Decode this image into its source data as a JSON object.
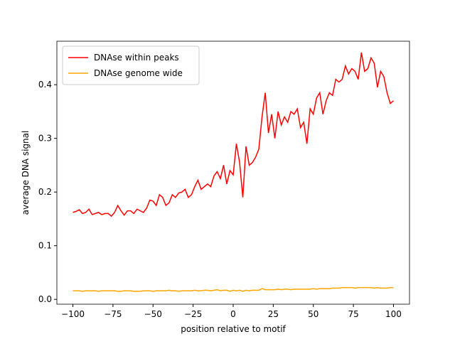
{
  "chart_data": {
    "type": "line",
    "xlabel": "position relative to motif",
    "ylabel": "average DNA signal",
    "x": [
      -100,
      -98,
      -96,
      -94,
      -92,
      -90,
      -88,
      -86,
      -84,
      -82,
      -80,
      -78,
      -76,
      -74,
      -72,
      -70,
      -68,
      -66,
      -64,
      -62,
      -60,
      -58,
      -56,
      -54,
      -52,
      -50,
      -48,
      -46,
      -44,
      -42,
      -40,
      -38,
      -36,
      -34,
      -32,
      -30,
      -28,
      -26,
      -24,
      -22,
      -20,
      -18,
      -16,
      -14,
      -12,
      -10,
      -8,
      -6,
      -4,
      -2,
      0,
      2,
      4,
      6,
      8,
      10,
      12,
      14,
      16,
      18,
      20,
      22,
      24,
      26,
      28,
      30,
      32,
      34,
      36,
      38,
      40,
      42,
      44,
      46,
      48,
      50,
      52,
      54,
      56,
      58,
      60,
      62,
      64,
      66,
      68,
      70,
      72,
      74,
      76,
      78,
      80,
      82,
      84,
      86,
      88,
      90,
      92,
      94,
      96,
      98,
      100
    ],
    "series": [
      {
        "name": "DNAse within peaks",
        "color": "#ff0000",
        "values": [
          0.162,
          0.164,
          0.167,
          0.16,
          0.162,
          0.168,
          0.158,
          0.16,
          0.162,
          0.158,
          0.16,
          0.16,
          0.155,
          0.162,
          0.175,
          0.165,
          0.157,
          0.165,
          0.165,
          0.16,
          0.168,
          0.165,
          0.162,
          0.17,
          0.185,
          0.183,
          0.175,
          0.195,
          0.19,
          0.175,
          0.18,
          0.195,
          0.19,
          0.198,
          0.2,
          0.205,
          0.19,
          0.195,
          0.21,
          0.222,
          0.205,
          0.21,
          0.215,
          0.21,
          0.23,
          0.238,
          0.225,
          0.25,
          0.215,
          0.24,
          0.232,
          0.29,
          0.255,
          0.19,
          0.285,
          0.25,
          0.255,
          0.265,
          0.28,
          0.34,
          0.385,
          0.31,
          0.345,
          0.3,
          0.35,
          0.325,
          0.34,
          0.33,
          0.35,
          0.345,
          0.355,
          0.32,
          0.33,
          0.29,
          0.355,
          0.345,
          0.375,
          0.385,
          0.345,
          0.37,
          0.385,
          0.38,
          0.41,
          0.405,
          0.41,
          0.435,
          0.42,
          0.43,
          0.425,
          0.41,
          0.46,
          0.425,
          0.43,
          0.45,
          0.44,
          0.395,
          0.425,
          0.415,
          0.385,
          0.365,
          0.37
        ]
      },
      {
        "name": "DNAse genome wide",
        "color": "#ffa500",
        "values": [
          0.016,
          0.016,
          0.016,
          0.015,
          0.016,
          0.016,
          0.016,
          0.016,
          0.015,
          0.016,
          0.016,
          0.016,
          0.016,
          0.016,
          0.015,
          0.015,
          0.016,
          0.016,
          0.016,
          0.015,
          0.015,
          0.015,
          0.016,
          0.016,
          0.016,
          0.015,
          0.016,
          0.016,
          0.016,
          0.016,
          0.017,
          0.016,
          0.016,
          0.015,
          0.016,
          0.016,
          0.016,
          0.016,
          0.017,
          0.016,
          0.016,
          0.017,
          0.017,
          0.016,
          0.017,
          0.018,
          0.016,
          0.017,
          0.017,
          0.015,
          0.017,
          0.016,
          0.017,
          0.015,
          0.017,
          0.016,
          0.017,
          0.017,
          0.017,
          0.02,
          0.018,
          0.018,
          0.018,
          0.018,
          0.019,
          0.018,
          0.019,
          0.019,
          0.018,
          0.019,
          0.019,
          0.019,
          0.019,
          0.019,
          0.019,
          0.02,
          0.019,
          0.02,
          0.02,
          0.02,
          0.02,
          0.021,
          0.021,
          0.021,
          0.022,
          0.022,
          0.022,
          0.022,
          0.021,
          0.022,
          0.022,
          0.022,
          0.022,
          0.022,
          0.021,
          0.022,
          0.021,
          0.021,
          0.021,
          0.022,
          0.022
        ]
      }
    ],
    "xlim": [
      -110,
      110
    ],
    "xticks": [
      {
        "value": -100,
        "label": "−100"
      },
      {
        "value": -75,
        "label": "−75"
      },
      {
        "value": -50,
        "label": "−50"
      },
      {
        "value": -25,
        "label": "−25"
      },
      0,
      25,
      50,
      75,
      100
    ],
    "ylim": [
      -0.009,
      0.481
    ],
    "yticks": [
      {
        "value": 0,
        "label": "0.0"
      },
      0.1,
      0.2,
      0.3,
      0.4
    ],
    "legend": "upper left"
  }
}
